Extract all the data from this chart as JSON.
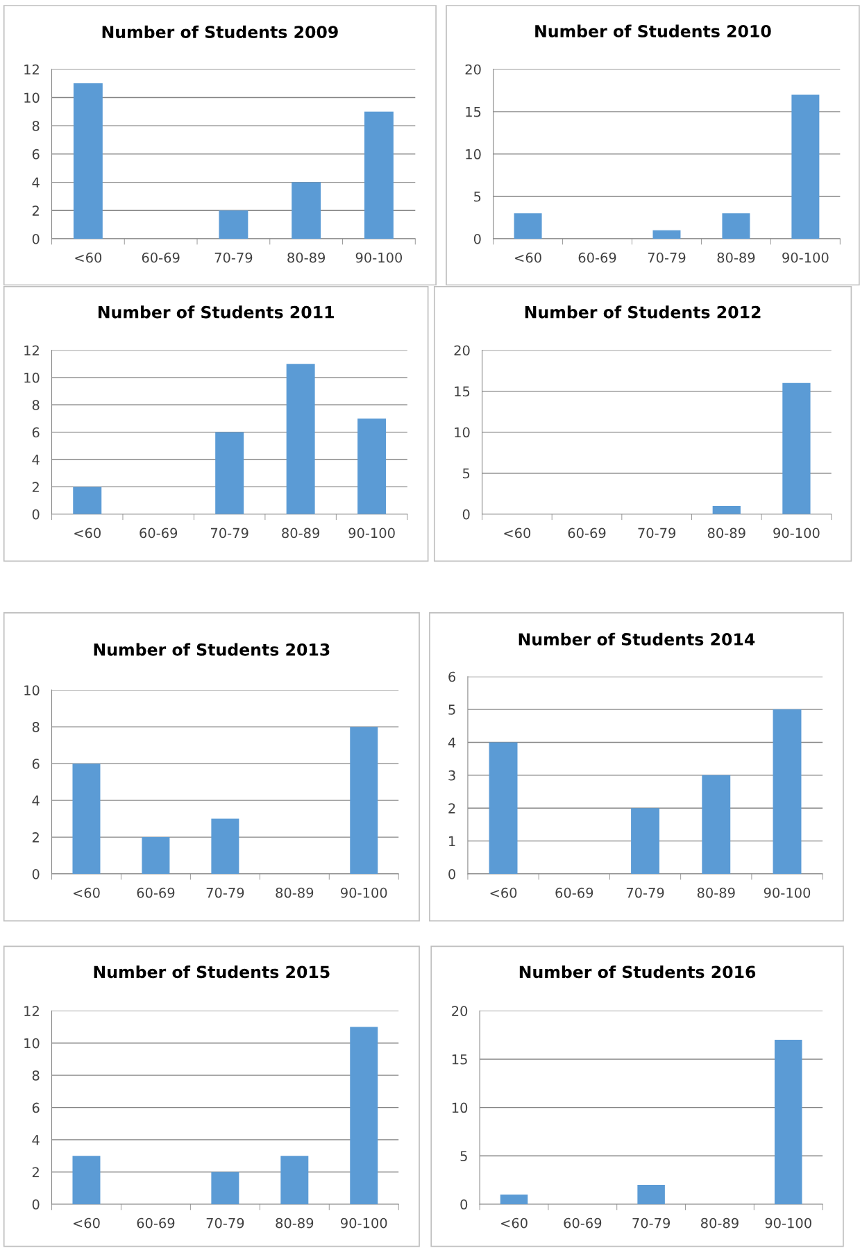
{
  "chart_data": [
    {
      "type": "bar",
      "title": "Number of Students 2009",
      "categories": [
        "<60",
        "60-69",
        "70-79",
        "80-89",
        "90-100"
      ],
      "values": [
        11,
        0,
        2,
        4,
        9
      ],
      "color": "#5b9bd5",
      "ylim": [
        0,
        12
      ],
      "yticks": [
        0,
        2,
        4,
        6,
        8,
        10,
        12
      ],
      "grid": "y",
      "legend": false
    },
    {
      "type": "bar",
      "title": "Number of Students 2010",
      "categories": [
        "<60",
        "60-69",
        "70-79",
        "80-89",
        "90-100"
      ],
      "values": [
        3,
        0,
        1,
        3,
        17
      ],
      "color": "#5b9bd5",
      "ylim": [
        0,
        20
      ],
      "yticks": [
        0,
        5,
        10,
        15,
        20
      ],
      "grid": "y",
      "legend": false
    },
    {
      "type": "bar",
      "title": "Number of Students 2011",
      "categories": [
        "<60",
        "60-69",
        "70-79",
        "80-89",
        "90-100"
      ],
      "values": [
        2,
        0,
        6,
        11,
        7
      ],
      "color": "#5b9bd5",
      "ylim": [
        0,
        12
      ],
      "yticks": [
        0,
        2,
        4,
        6,
        8,
        10,
        12
      ],
      "grid": "y",
      "legend": false
    },
    {
      "type": "bar",
      "title": "Number of Students 2012",
      "categories": [
        "<60",
        "60-69",
        "70-79",
        "80-89",
        "90-100"
      ],
      "values": [
        0,
        0,
        0,
        1,
        16
      ],
      "color": "#5b9bd5",
      "ylim": [
        0,
        20
      ],
      "yticks": [
        0,
        5,
        10,
        15,
        20
      ],
      "grid": "y",
      "legend": false
    },
    {
      "type": "bar",
      "title": "Number of Students 2013",
      "categories": [
        "<60",
        "60-69",
        "70-79",
        "80-89",
        "90-100"
      ],
      "values": [
        6,
        2,
        3,
        0,
        8
      ],
      "color": "#5b9bd5",
      "ylim": [
        0,
        10
      ],
      "yticks": [
        0,
        2,
        4,
        6,
        8,
        10
      ],
      "grid": "y",
      "legend": false
    },
    {
      "type": "bar",
      "title": "Number of Students 2014",
      "categories": [
        "<60",
        "60-69",
        "70-79",
        "80-89",
        "90-100"
      ],
      "values": [
        4,
        0,
        2,
        3,
        5
      ],
      "color": "#5b9bd5",
      "ylim": [
        0,
        6
      ],
      "yticks": [
        0,
        1,
        2,
        3,
        4,
        5,
        6
      ],
      "grid": "y",
      "legend": false
    },
    {
      "type": "bar",
      "title": "Number of Students 2015",
      "categories": [
        "<60",
        "60-69",
        "70-79",
        "80-89",
        "90-100"
      ],
      "values": [
        3,
        0,
        2,
        3,
        11
      ],
      "color": "#5b9bd5",
      "ylim": [
        0,
        12
      ],
      "yticks": [
        0,
        2,
        4,
        6,
        8,
        10,
        12
      ],
      "grid": "y",
      "legend": false
    },
    {
      "type": "bar",
      "title": "Number of Students 2016",
      "categories": [
        "<60",
        "60-69",
        "70-79",
        "80-89",
        "90-100"
      ],
      "values": [
        1,
        0,
        2,
        0,
        17
      ],
      "color": "#5b9bd5",
      "ylim": [
        0,
        20
      ],
      "yticks": [
        0,
        5,
        10,
        15,
        20
      ],
      "grid": "y",
      "legend": false
    }
  ]
}
